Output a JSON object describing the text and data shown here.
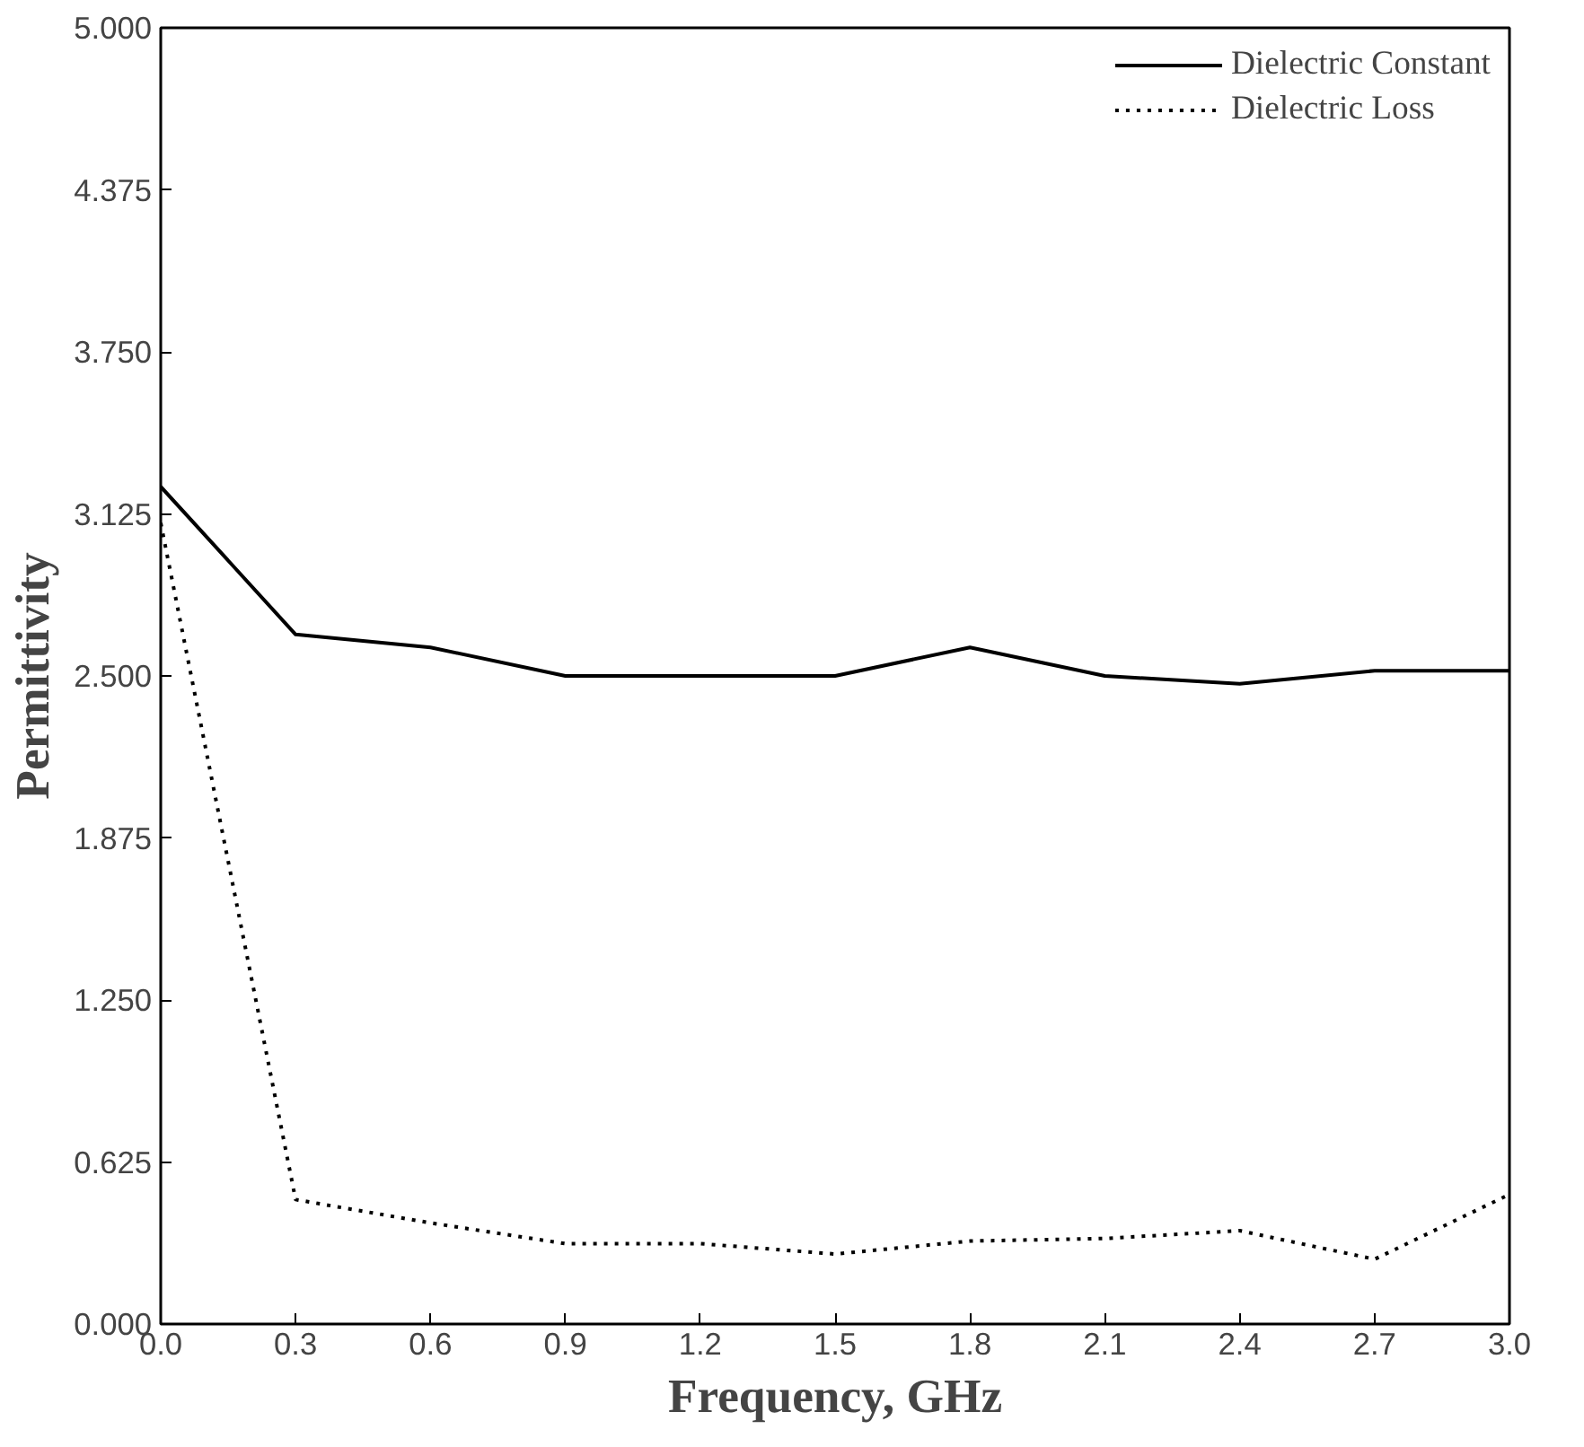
{
  "chart_data": {
    "type": "line",
    "xlabel": "Frequency, GHz",
    "ylabel": "Permittivity",
    "x": [
      0.0,
      0.3,
      0.6,
      0.9,
      1.2,
      1.5,
      1.8,
      2.1,
      2.4,
      2.7,
      3.0
    ],
    "series": [
      {
        "name": "Dielectric Constant",
        "color": "#000000",
        "line_style": "solid",
        "values": [
          3.23,
          2.66,
          2.61,
          2.5,
          2.5,
          2.5,
          2.61,
          2.5,
          2.47,
          2.52,
          2.52
        ]
      },
      {
        "name": "Dielectric Loss",
        "color": "#000000",
        "line_style": "dotted",
        "values": [
          3.09,
          0.48,
          0.39,
          0.31,
          0.31,
          0.27,
          0.32,
          0.33,
          0.36,
          0.25,
          0.5
        ]
      }
    ],
    "xlim": [
      0.0,
      3.0
    ],
    "ylim": [
      0.0,
      5.0
    ],
    "xticks": [
      {
        "value": 0.0,
        "label": "0.0"
      },
      0.3,
      0.6,
      0.9,
      1.2,
      1.5,
      1.8,
      2.1,
      2.4,
      2.7,
      {
        "value": 3.0,
        "label": "3.0"
      }
    ],
    "yticks": [
      {
        "value": 0.0,
        "label": "0.000"
      },
      0.625,
      {
        "value": 1.25,
        "label": "1.250"
      },
      1.875,
      {
        "value": 2.5,
        "label": "2.500"
      },
      3.125,
      {
        "value": 3.75,
        "label": "3.750"
      },
      4.375,
      {
        "value": 5.0,
        "label": "5.000"
      }
    ],
    "legend": "top right",
    "grid": false,
    "marker": "none"
  }
}
